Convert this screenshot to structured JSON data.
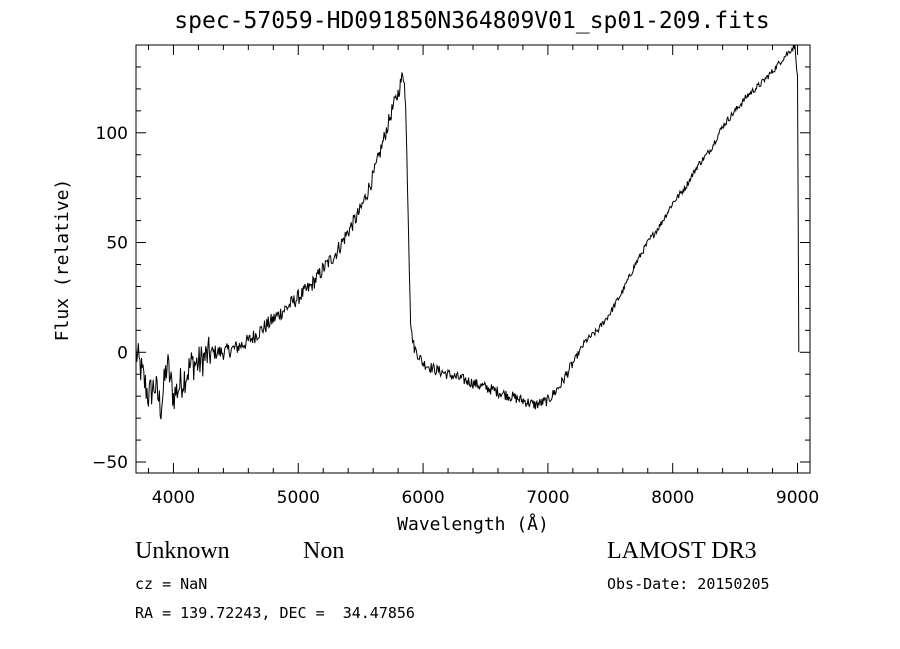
{
  "chart_data": {
    "type": "line",
    "title": "spec-57059-HD091850N364809V01_sp01-209.fits",
    "xlabel": "Wavelength (Å)",
    "ylabel": "Flux (relative)",
    "xlim": [
      3700,
      9100
    ],
    "ylim": [
      -55,
      140
    ],
    "xticks": [
      4000,
      5000,
      6000,
      7000,
      8000,
      9000
    ],
    "yticks": [
      -50,
      0,
      50,
      100
    ],
    "xtick_labels": [
      "4000",
      "5000",
      "6000",
      "7000",
      "8000",
      "9000"
    ],
    "ytick_labels": [
      "−50",
      "0",
      "50",
      "100"
    ],
    "series": [
      {
        "x": [
          3700,
          3750,
          3800,
          3850,
          3900,
          3950,
          4000,
          4050,
          4100,
          4150,
          4200,
          4300,
          4400,
          4500,
          4600,
          4700,
          4800,
          4900,
          5000,
          5100,
          5200,
          5300,
          5400,
          5500,
          5600,
          5650,
          5700,
          5750,
          5800,
          5830,
          5850,
          5860,
          5870,
          5880,
          5890,
          5900,
          5910,
          5920,
          5930,
          5950,
          6000,
          6100,
          6200,
          6300,
          6400,
          6500,
          6600,
          6700,
          6800,
          6900,
          7000,
          7100,
          7200,
          7300,
          7400,
          7500,
          7600,
          7700,
          7800,
          7900,
          8000,
          8100,
          8200,
          8300,
          8400,
          8500,
          8600,
          8700,
          8800,
          8900,
          8950,
          8980,
          9000,
          9005,
          9010
        ],
        "y": [
          0,
          -10,
          -20,
          -15,
          -25,
          -5,
          -20,
          -15,
          -10,
          -5,
          -5,
          0,
          0,
          2,
          5,
          10,
          15,
          20,
          25,
          30,
          38,
          45,
          55,
          65,
          80,
          90,
          100,
          110,
          118,
          125,
          125,
          112,
          90,
          65,
          40,
          15,
          8,
          5,
          2,
          0,
          -5,
          -8,
          -10,
          -12,
          -14,
          -16,
          -18,
          -20,
          -22,
          -24,
          -22,
          -15,
          -5,
          5,
          10,
          18,
          28,
          40,
          50,
          58,
          68,
          75,
          85,
          92,
          103,
          110,
          117,
          122,
          128,
          135,
          138,
          140,
          125,
          70,
          0
        ]
      }
    ]
  },
  "footer": {
    "object_class": "Unknown",
    "subclass": "Non",
    "survey": "LAMOST DR3",
    "cz": "cz = NaN",
    "obs_date": "Obs-Date: 20150205",
    "coords": "RA = 139.72243, DEC =  34.47856"
  }
}
